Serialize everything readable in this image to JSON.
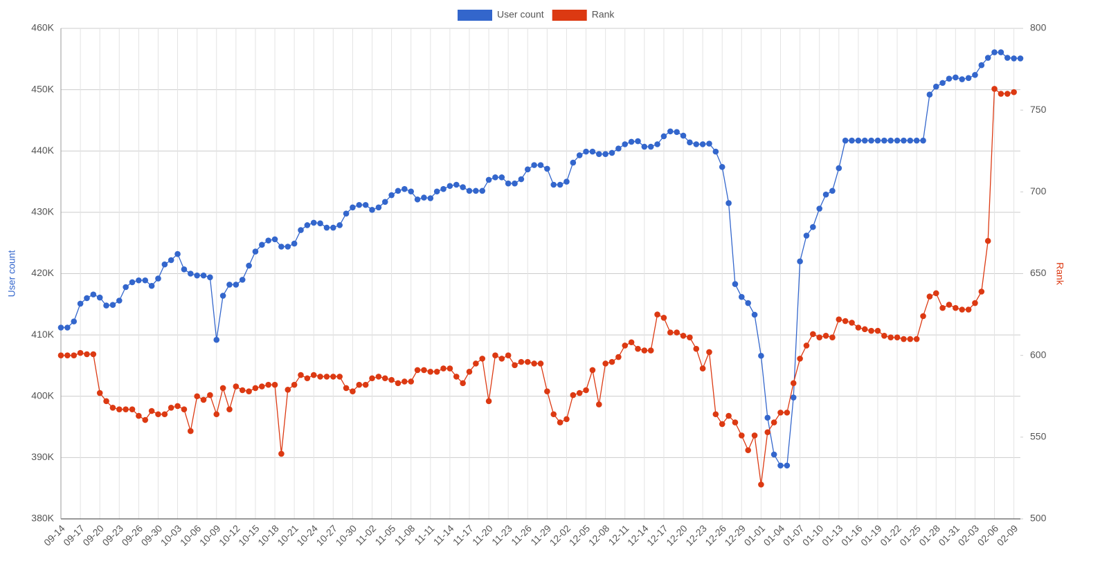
{
  "chart_data": {
    "type": "line",
    "categories": [
      "09-14",
      null,
      null,
      "09-17",
      null,
      null,
      "09-20",
      null,
      null,
      "09-23",
      null,
      null,
      "09-26",
      null,
      null,
      "09-30",
      null,
      null,
      "10-03",
      null,
      null,
      "10-06",
      null,
      null,
      "10-09",
      null,
      null,
      "10-12",
      null,
      null,
      "10-15",
      null,
      null,
      "10-18",
      null,
      null,
      "10-21",
      null,
      null,
      "10-24",
      null,
      null,
      "10-27",
      null,
      null,
      "10-30",
      null,
      null,
      "11-02",
      null,
      null,
      "11-05",
      null,
      null,
      "11-08",
      null,
      null,
      "11-11",
      null,
      null,
      "11-14",
      null,
      null,
      "11-17",
      null,
      null,
      "11-20",
      null,
      null,
      "11-23",
      null,
      null,
      "11-26",
      null,
      null,
      "11-29",
      null,
      null,
      "12-02",
      null,
      null,
      "12-05",
      null,
      null,
      "12-08",
      null,
      null,
      "12-11",
      null,
      null,
      "12-14",
      null,
      null,
      "12-17",
      null,
      null,
      "12-20",
      null,
      null,
      "12-23",
      null,
      null,
      "12-26",
      null,
      null,
      "12-29",
      null,
      null,
      "01-01",
      null,
      null,
      "01-04",
      null,
      null,
      "01-07",
      null,
      null,
      "01-10",
      null,
      null,
      "01-13",
      null,
      null,
      "01-16",
      null,
      null,
      "01-19",
      null,
      null,
      "01-22",
      null,
      null,
      "01-25",
      null,
      null,
      "01-28",
      null,
      null,
      "01-31",
      null,
      null,
      "02-03",
      null,
      null,
      "02-06",
      null,
      null,
      "02-09",
      null
    ],
    "series": [
      {
        "name": "User count",
        "color": "#3366cc",
        "values": [
          411200,
          411200,
          412200,
          415100,
          416000,
          416600,
          416100,
          414800,
          414900,
          415600,
          417800,
          418600,
          418900,
          418900,
          418000,
          419200,
          421500,
          422200,
          423200,
          420700,
          420000,
          419700,
          419700,
          419400,
          409200,
          416400,
          418200,
          418200,
          419000,
          421300,
          423600,
          424700,
          425400,
          425600,
          424400,
          424400,
          424900,
          427100,
          427900,
          428300,
          428200,
          427500,
          427500,
          427900,
          429800,
          430800,
          431200,
          431200,
          430400,
          430800,
          431700,
          432800,
          433500,
          433800,
          433400,
          432100,
          432400,
          432300,
          433400,
          433800,
          434300,
          434500,
          434100,
          433500,
          433500,
          433500,
          435300,
          435700,
          435700,
          434700,
          434700,
          435400,
          437000,
          437700,
          437700,
          437100,
          434500,
          434500,
          435000,
          438100,
          439300,
          439900,
          439900,
          439500,
          439500,
          439700,
          440400,
          441100,
          441500,
          441600,
          440700,
          440700,
          441100,
          442400,
          443200,
          443100,
          442500,
          441400,
          441100,
          441100,
          441200,
          439900,
          437400,
          431500,
          418300,
          416200,
          415200,
          413300,
          406600,
          396500,
          390500,
          388700,
          388700,
          399800,
          422000,
          426200,
          427600,
          430600,
          432900,
          433500,
          437200,
          441700,
          441700,
          441700,
          441700,
          441700,
          441700,
          441700,
          441700,
          441700,
          441700,
          441700,
          441700,
          441700,
          449200,
          450500,
          451100,
          451800,
          452000,
          451700,
          451900,
          452400,
          454000,
          455200,
          456100,
          456100,
          455200,
          455100,
          455100
        ]
      },
      {
        "name": "Rank",
        "color": "#dc3912",
        "axis": "y2",
        "values": [
          600,
          600,
          600,
          601.5,
          600.7,
          600.7,
          577,
          572,
          568,
          567,
          567,
          567,
          563,
          560.5,
          566,
          564,
          564,
          568,
          569,
          567,
          553.7,
          575,
          572.8,
          575.7,
          564,
          580,
          567,
          581,
          578.7,
          578,
          580,
          581,
          582,
          582,
          539.8,
          579,
          582,
          588,
          586,
          588,
          587,
          587,
          587,
          587,
          580,
          578,
          582,
          582,
          586,
          587,
          586,
          585,
          583,
          584,
          584,
          591,
          591,
          590,
          590,
          592,
          592,
          587,
          583,
          590,
          595,
          598,
          572,
          600,
          598,
          600,
          594,
          596,
          596,
          595,
          595,
          578,
          564,
          559,
          561,
          575.7,
          577,
          578.7,
          591,
          570,
          595,
          596,
          599,
          606,
          608,
          604,
          603,
          603,
          625,
          623,
          614,
          614,
          612,
          611,
          604,
          592,
          602,
          564,
          558,
          563,
          559,
          551,
          542,
          551,
          521,
          553,
          559,
          565,
          565,
          583,
          598,
          606,
          613,
          611,
          612,
          611,
          622,
          621,
          620,
          617,
          616,
          615,
          615,
          612,
          611,
          611,
          610,
          610,
          610,
          624,
          636,
          638,
          629,
          631,
          629,
          628,
          628,
          632,
          639,
          670,
          763,
          760,
          760,
          761,
          null
        ]
      }
    ],
    "ylabel": "User count",
    "y2label": "Rank",
    "ylim": [
      380000,
      460000
    ],
    "yticks": [
      {
        "value": 380000,
        "label": "380K"
      },
      {
        "value": 390000,
        "label": "390K"
      },
      {
        "value": 400000,
        "label": "400K"
      },
      {
        "value": 410000,
        "label": "410K"
      },
      {
        "value": 420000,
        "label": "420K"
      },
      {
        "value": 430000,
        "label": "430K"
      },
      {
        "value": 440000,
        "label": "440K"
      },
      {
        "value": 450000,
        "label": "450K"
      },
      {
        "value": 460000,
        "label": "460K"
      }
    ],
    "y2lim": [
      500,
      800
    ],
    "y2ticks": [
      500,
      550,
      600,
      650,
      700,
      750,
      800
    ],
    "grid": true,
    "legend": "top"
  }
}
